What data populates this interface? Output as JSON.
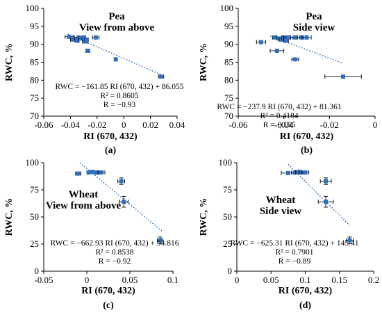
{
  "colors": {
    "marker": "#2f6fbf",
    "trend": "#2f6fbf",
    "errorbar": "#000000",
    "axis": "#000000",
    "text": "#000000"
  },
  "chart_data": [
    {
      "id": "a",
      "type": "scatter",
      "panel_label": "(a)",
      "title_lines": [
        "Pea",
        "View from above"
      ],
      "xlabel": "RI (670, 432)",
      "ylabel": "RWC, %",
      "xlim": [
        -0.06,
        0.04
      ],
      "ylim": [
        70,
        100
      ],
      "xticks": [
        -0.06,
        -0.04,
        -0.02,
        0,
        0.02,
        0.04
      ],
      "xtick_labels": [
        "-0.06",
        "-0.04",
        "-0.02",
        "0",
        "0.02",
        "0.04"
      ],
      "yticks": [
        70,
        75,
        80,
        85,
        90,
        95,
        100
      ],
      "ytick_labels": [
        "70",
        "75",
        "80",
        "85",
        "90",
        "95",
        "100"
      ],
      "grid": false,
      "points": [
        {
          "x": -0.041,
          "y": 92.1,
          "xerr": 0.003
        },
        {
          "x": -0.038,
          "y": 91.3,
          "xerr": 0.002
        },
        {
          "x": -0.035,
          "y": 91.0,
          "xerr": 0.0015
        },
        {
          "x": -0.034,
          "y": 91.9,
          "xerr": 0.003
        },
        {
          "x": -0.032,
          "y": 91.6,
          "xerr": 0.002
        },
        {
          "x": -0.03,
          "y": 91.9,
          "xerr": 0.0015
        },
        {
          "x": -0.029,
          "y": 90.8,
          "xerr": 0.002
        },
        {
          "x": -0.028,
          "y": 91.3,
          "xerr": 0.0015
        },
        {
          "x": -0.027,
          "y": 88.2,
          "xerr": 0.0015
        },
        {
          "x": -0.021,
          "y": 91.9,
          "xerr": 0.0025
        },
        {
          "x": -0.006,
          "y": 85.8,
          "xerr": 0.001
        },
        {
          "x": 0.028,
          "y": 81.0,
          "xerr": 0.002
        }
      ],
      "trendline": {
        "x": [
          -0.042,
          0.028
        ],
        "y": [
          92.85,
          81.52
        ]
      },
      "equation_lines": [
        "RWC = −161.85 RI (670, 432) + 86.055",
        "R² = 0.8605",
        "R = −0.93"
      ]
    },
    {
      "id": "b",
      "type": "scatter",
      "panel_label": "(b)",
      "title_lines": [
        "Pea",
        "Side view"
      ],
      "xlabel": "RI (670, 432)",
      "ylabel": "RWC, %",
      "xlim": [
        -0.06,
        0
      ],
      "ylim": [
        70,
        100
      ],
      "xticks": [
        -0.06,
        -0.04,
        -0.02,
        0
      ],
      "xtick_labels": [
        "-0.06",
        "-0.04",
        "-0.02",
        "0"
      ],
      "yticks": [
        70,
        75,
        80,
        85,
        90,
        95,
        100
      ],
      "ytick_labels": [
        "70",
        "75",
        "80",
        "85",
        "90",
        "95",
        "100"
      ],
      "grid": false,
      "points": [
        {
          "x": -0.05,
          "y": 90.6,
          "xerr": 0.002
        },
        {
          "x": -0.044,
          "y": 91.9,
          "xerr": 0.001
        },
        {
          "x": -0.043,
          "y": 88.2,
          "xerr": 0.003
        },
        {
          "x": -0.042,
          "y": 91.6,
          "xerr": 0.001
        },
        {
          "x": -0.041,
          "y": 91.3,
          "xerr": 0.001
        },
        {
          "x": -0.04,
          "y": 91.9,
          "xerr": 0.001
        },
        {
          "x": -0.039,
          "y": 91.6,
          "xerr": 0.001
        },
        {
          "x": -0.039,
          "y": 91.0,
          "xerr": 0.001
        },
        {
          "x": -0.038,
          "y": 91.9,
          "xerr": 0.002
        },
        {
          "x": -0.035,
          "y": 91.9,
          "xerr": 0.002
        },
        {
          "x": -0.035,
          "y": 85.8,
          "xerr": 0.0015
        },
        {
          "x": -0.032,
          "y": 91.9,
          "xerr": 0.002
        },
        {
          "x": -0.03,
          "y": 91.9,
          "xerr": 0.002
        },
        {
          "x": -0.014,
          "y": 81.0,
          "xerr": 0.008
        }
      ],
      "trendline": {
        "x": [
          -0.046,
          -0.014
        ],
        "y": [
          92.3,
          84.7
        ]
      },
      "equation_lines": [
        "RWC = −237.9 RI (670, 432) + 81.361",
        "R² = 0.4184",
        "R = −0.65"
      ]
    },
    {
      "id": "c",
      "type": "scatter",
      "panel_label": "(c)",
      "title_lines": [
        "Wheat",
        "View from above"
      ],
      "xlabel": "RI (670, 432)",
      "ylabel": "RWC, %",
      "xlim": [
        -0.05,
        0.1
      ],
      "ylim": [
        0,
        100
      ],
      "xticks": [
        -0.05,
        0,
        0.05,
        0.1
      ],
      "xtick_labels": [
        "-0.05",
        "0",
        "0.05",
        "0.1"
      ],
      "yticks": [
        0,
        25,
        50,
        75,
        100
      ],
      "ytick_labels": [
        "0",
        "25",
        "50",
        "75",
        "100"
      ],
      "grid": false,
      "points": [
        {
          "x": -0.01,
          "y": 90.0,
          "xerr": 0.003
        },
        {
          "x": 0.002,
          "y": 91.0,
          "xerr": 0.002
        },
        {
          "x": 0.006,
          "y": 91.5,
          "xerr": 0.002
        },
        {
          "x": 0.01,
          "y": 91.0,
          "xerr": 0.002
        },
        {
          "x": 0.013,
          "y": 91.0,
          "xerr": 0.002
        },
        {
          "x": 0.017,
          "y": 91.0,
          "xerr": 0.004
        },
        {
          "x": 0.04,
          "y": 83.0,
          "xerr": 0.004,
          "yerr": 3
        },
        {
          "x": 0.043,
          "y": 64.0,
          "xerr": 0.005,
          "yerr": 5
        },
        {
          "x": 0.085,
          "y": 28.5,
          "xerr": 0.003,
          "yerr": 3
        }
      ],
      "trendline": {
        "x": [
          -0.008,
          0.087
        ],
        "y": [
          100.0,
          37.1
        ]
      },
      "equation_lines": [
        "RWC = −662.93 RI (670, 432) + 94.816",
        "R² = 0.8538",
        "R = −0.92"
      ]
    },
    {
      "id": "d",
      "type": "scatter",
      "panel_label": "(d)",
      "title_lines": [
        "Wheat",
        "Side view"
      ],
      "xlabel": "RI (670, 432)",
      "ylabel": "RWC, %",
      "xlim": [
        0,
        0.2
      ],
      "ylim": [
        0,
        100
      ],
      "xticks": [
        0,
        0.05,
        0.1,
        0.15,
        0.2
      ],
      "xtick_labels": [
        "0",
        "0.05",
        "0.1",
        "0.15",
        "0.2"
      ],
      "yticks": [
        0,
        25,
        50,
        75,
        100
      ],
      "ytick_labels": [
        "0",
        "25",
        "50",
        "75",
        "100"
      ],
      "grid": false,
      "points": [
        {
          "x": 0.075,
          "y": 90.5,
          "xerr": 0.01
        },
        {
          "x": 0.085,
          "y": 91.0,
          "xerr": 0.005
        },
        {
          "x": 0.09,
          "y": 91.5,
          "xerr": 0.004
        },
        {
          "x": 0.095,
          "y": 91.0,
          "xerr": 0.004
        },
        {
          "x": 0.1,
          "y": 91.0,
          "xerr": 0.005
        },
        {
          "x": 0.13,
          "y": 83.0,
          "xerr": 0.008,
          "yerr": 3
        },
        {
          "x": 0.13,
          "y": 64.0,
          "xerr": 0.011,
          "yerr": 5
        },
        {
          "x": 0.165,
          "y": 28.5,
          "xerr": 0.005,
          "yerr": 3
        }
      ],
      "trendline": {
        "x": [
          0.075,
          0.165
        ],
        "y": [
          98.5,
          42.2
        ]
      },
      "equation_lines": [
        "RWC = −625.31 RI (670, 432) + 145.41",
        "R² = 0.7901",
        "R = −0.89"
      ]
    }
  ]
}
